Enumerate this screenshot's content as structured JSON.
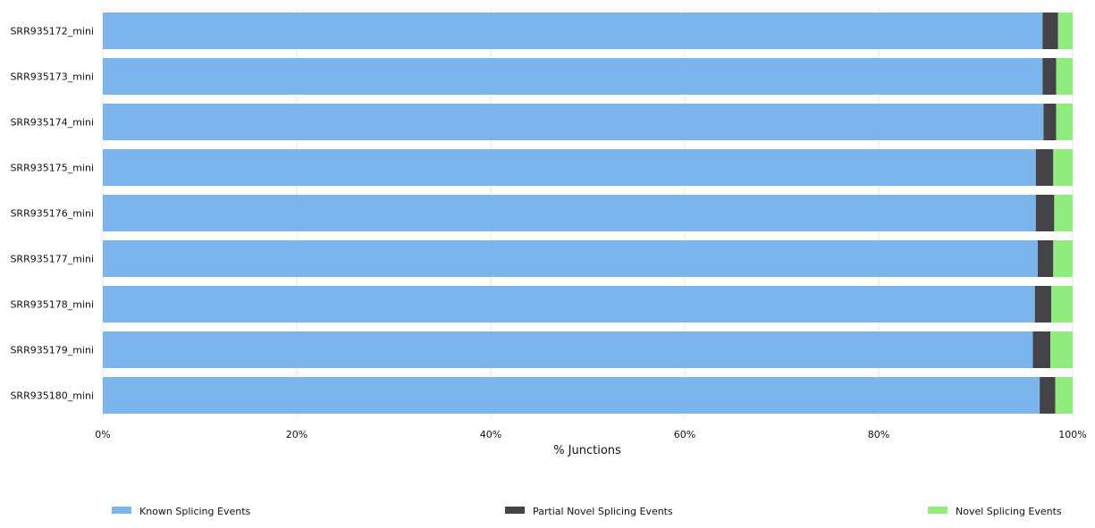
{
  "chart_data": {
    "type": "bar",
    "orientation": "horizontal",
    "stacked": true,
    "categories": [
      "SRR935172_mini",
      "SRR935173_mini",
      "SRR935174_mini",
      "SRR935175_mini",
      "SRR935176_mini",
      "SRR935177_mini",
      "SRR935178_mini",
      "SRR935179_mini",
      "SRR935180_mini"
    ],
    "series": [
      {
        "name": "Known Splicing Events",
        "color": "#7cb5ec",
        "values": [
          96.9,
          96.9,
          97.0,
          96.2,
          96.2,
          96.4,
          96.1,
          95.9,
          96.6
        ]
      },
      {
        "name": "Partial Novel Splicing Events",
        "color": "#434348",
        "values": [
          1.6,
          1.4,
          1.3,
          1.8,
          1.9,
          1.6,
          1.7,
          1.8,
          1.6
        ]
      },
      {
        "name": "Novel Splicing Events",
        "color": "#90ed7d",
        "values": [
          1.5,
          1.7,
          1.7,
          2.0,
          1.9,
          2.0,
          2.2,
          2.3,
          1.8
        ]
      }
    ],
    "xlabel": "% Junctions",
    "xlim": [
      0,
      100
    ],
    "xticks": [
      "0%",
      "20%",
      "40%",
      "60%",
      "80%",
      "100%"
    ],
    "xtick_values": [
      0,
      20,
      40,
      60,
      80,
      100
    ],
    "grid": true,
    "legend": "bottom"
  }
}
